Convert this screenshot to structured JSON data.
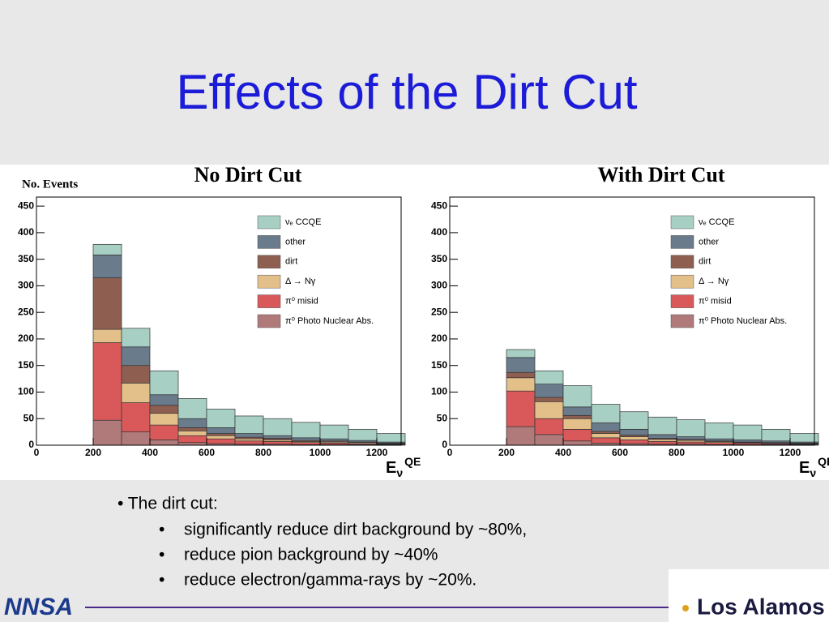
{
  "title": "Effects of the Dirt Cut",
  "chart_data": [
    {
      "type": "stacked_histogram",
      "title": "No Dirt Cut",
      "y_label": "No. Events",
      "x_label": {
        "base": "E",
        "sub": "ν",
        "sup": "QE"
      },
      "bins": [
        200,
        300,
        400,
        500,
        600,
        700,
        800,
        900,
        1000,
        1100,
        1200,
        1300
      ],
      "xlim": [
        0,
        1300
      ],
      "xticks": [
        0,
        200,
        400,
        600,
        800,
        1000,
        1200
      ],
      "ylim": [
        0,
        467
      ],
      "yticks": [
        0,
        50,
        100,
        150,
        200,
        250,
        300,
        350,
        400,
        450
      ],
      "series": [
        {
          "name": "π⁰ Photo Nuclear Abs.",
          "color": "#b07a7a",
          "values": [
            47,
            25,
            10,
            5,
            3,
            2,
            2,
            1,
            1,
            1,
            1
          ]
        },
        {
          "name": "π⁰ misid",
          "color": "#d9595a",
          "values": [
            146,
            55,
            28,
            13,
            9,
            6,
            5,
            4,
            3,
            2,
            1
          ]
        },
        {
          "name": "Δ → Nγ",
          "color": "#e3c08a",
          "values": [
            25,
            37,
            22,
            9,
            6,
            4,
            3,
            2,
            2,
            2,
            1
          ]
        },
        {
          "name": "dirt",
          "color": "#8e5f50",
          "values": [
            97,
            33,
            15,
            6,
            4,
            3,
            3,
            2,
            2,
            1,
            1
          ]
        },
        {
          "name": "other",
          "color": "#6a7b8c",
          "values": [
            43,
            35,
            20,
            17,
            11,
            7,
            5,
            5,
            4,
            3,
            2
          ]
        },
        {
          "name": "νₑ CCQE",
          "color": "#a8cfc3",
          "values": [
            20,
            35,
            45,
            38,
            35,
            33,
            32,
            29,
            26,
            21,
            16
          ]
        }
      ]
    },
    {
      "type": "stacked_histogram",
      "title": "With Dirt Cut",
      "x_label": {
        "base": "E",
        "sub": "ν",
        "sup": "QE"
      },
      "bins": [
        200,
        300,
        400,
        500,
        600,
        700,
        800,
        900,
        1000,
        1100,
        1200,
        1300
      ],
      "xlim": [
        0,
        1300
      ],
      "xticks": [
        0,
        200,
        400,
        600,
        800,
        1000,
        1200
      ],
      "ylim": [
        0,
        467
      ],
      "yticks": [
        0,
        50,
        100,
        150,
        200,
        250,
        300,
        350,
        400,
        450
      ],
      "series": [
        {
          "name": "π⁰ Photo Nuclear Abs.",
          "color": "#b07a7a",
          "values": [
            35,
            20,
            8,
            4,
            3,
            2,
            2,
            1,
            1,
            1,
            1
          ]
        },
        {
          "name": "π⁰ misid",
          "color": "#d9595a",
          "values": [
            67,
            30,
            22,
            10,
            7,
            5,
            4,
            4,
            3,
            2,
            1
          ]
        },
        {
          "name": "Δ → Nγ",
          "color": "#e3c08a",
          "values": [
            25,
            32,
            20,
            8,
            6,
            4,
            3,
            2,
            1,
            1,
            1
          ]
        },
        {
          "name": "dirt",
          "color": "#8e5f50",
          "values": [
            10,
            8,
            6,
            4,
            3,
            2,
            2,
            1,
            1,
            1,
            1
          ]
        },
        {
          "name": "other",
          "color": "#6a7b8c",
          "values": [
            28,
            25,
            16,
            16,
            11,
            7,
            5,
            4,
            4,
            3,
            2
          ]
        },
        {
          "name": "νₑ CCQE",
          "color": "#a8cfc3",
          "values": [
            15,
            25,
            40,
            35,
            33,
            33,
            32,
            30,
            28,
            22,
            16
          ]
        }
      ]
    }
  ],
  "bullets": {
    "head": "• The dirt cut:",
    "items": [
      "significantly reduce dirt background by ~80%,",
      "reduce pion background by ~40%",
      "reduce electron/gamma-rays by  ~20%."
    ]
  },
  "logos": {
    "left": "NNSA",
    "right": "Los Alamos"
  }
}
